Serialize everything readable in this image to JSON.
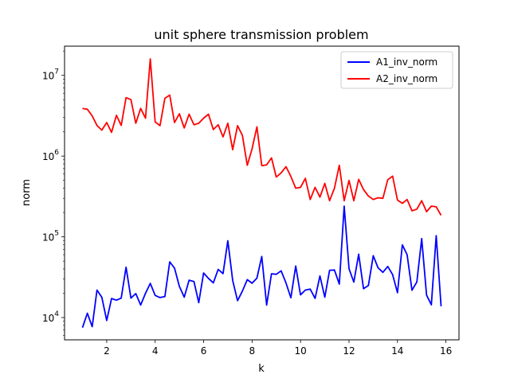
{
  "chart_data": {
    "type": "line",
    "title": "unit sphere transmission problem",
    "xlabel": "k",
    "ylabel": "norm",
    "xscale": "linear",
    "yscale": "log",
    "xlim": [
      0.26,
      16.54
    ],
    "ylim": [
      5300,
      23000000
    ],
    "grid": false,
    "legend_position": "top-right",
    "x_ticks": [
      {
        "value": 2,
        "label": "2"
      },
      {
        "value": 4,
        "label": "4"
      },
      {
        "value": 6,
        "label": "6"
      },
      {
        "value": 8,
        "label": "8"
      },
      {
        "value": 10,
        "label": "10"
      },
      {
        "value": 12,
        "label": "12"
      },
      {
        "value": 14,
        "label": "14"
      },
      {
        "value": 16,
        "label": "16"
      }
    ],
    "y_ticks": [
      {
        "value": 10000,
        "base": "10",
        "exp": "4"
      },
      {
        "value": 100000,
        "base": "10",
        "exp": "5"
      },
      {
        "value": 1000000,
        "base": "10",
        "exp": "6"
      },
      {
        "value": 10000000,
        "base": "10",
        "exp": "7"
      }
    ],
    "x": [
      1.0,
      1.2,
      1.4,
      1.6,
      1.8,
      2.0,
      2.2,
      2.4,
      2.6,
      2.8,
      3.0,
      3.2,
      3.4,
      3.6,
      3.8,
      4.0,
      4.2,
      4.4,
      4.6,
      4.8,
      5.0,
      5.2,
      5.4,
      5.6,
      5.8,
      6.0,
      6.2,
      6.4,
      6.6,
      6.8,
      7.0,
      7.2,
      7.4,
      7.6,
      7.8,
      8.0,
      8.2,
      8.4,
      8.6,
      8.8,
      9.0,
      9.2,
      9.4,
      9.6,
      9.8,
      10.0,
      10.2,
      10.4,
      10.6,
      10.8,
      11.0,
      11.2,
      11.4,
      11.6,
      11.8,
      12.0,
      12.2,
      12.4,
      12.6,
      12.8,
      13.0,
      13.2,
      13.4,
      13.6,
      13.8,
      14.0,
      14.2,
      14.4,
      14.6,
      14.8,
      15.0,
      15.2,
      15.4,
      15.6,
      15.8
    ],
    "series": [
      {
        "name": "A1_inv_norm",
        "color": "#0000ff",
        "values": [
          7500,
          11300,
          7700,
          21900,
          17800,
          9200,
          17200,
          16400,
          17400,
          42000,
          17400,
          19800,
          14300,
          20000,
          26500,
          18800,
          17700,
          18200,
          49000,
          41000,
          24300,
          17900,
          29000,
          28000,
          15300,
          35700,
          30600,
          26900,
          39500,
          35000,
          89500,
          28800,
          16200,
          21300,
          29500,
          26600,
          30800,
          57000,
          14300,
          34900,
          34300,
          37900,
          26800,
          17600,
          43500,
          19100,
          21900,
          22500,
          17300,
          32800,
          17900,
          38500,
          38800,
          26000,
          240000,
          40200,
          27500,
          61000,
          22800,
          25000,
          58400,
          41300,
          36300,
          43000,
          34000,
          20300,
          79500,
          60000,
          21800,
          27600,
          95000,
          19000,
          14400,
          103500,
          13800
        ]
      },
      {
        "name": "A2_inv_norm",
        "color": "#ff0000",
        "values": [
          3900000,
          3800000,
          3150000,
          2400000,
          2100000,
          2600000,
          1970000,
          3200000,
          2400000,
          5300000,
          5000000,
          2550000,
          3900000,
          2950000,
          16000000,
          2650000,
          2380000,
          5200000,
          5700000,
          2600000,
          3350000,
          2230000,
          3300000,
          2440000,
          2550000,
          2950000,
          3300000,
          2130000,
          2450000,
          1730000,
          2550000,
          1200000,
          2380000,
          1800000,
          770000,
          1230000,
          2300000,
          760000,
          780000,
          950000,
          550000,
          620000,
          740000,
          560000,
          400000,
          410000,
          530000,
          290000,
          410000,
          310000,
          460000,
          280000,
          400000,
          770000,
          280000,
          500000,
          280000,
          515000,
          385000,
          320000,
          290000,
          305000,
          300000,
          510000,
          565000,
          285000,
          260000,
          290000,
          210000,
          220000,
          280000,
          205000,
          240000,
          235000,
          185000
        ]
      }
    ]
  }
}
